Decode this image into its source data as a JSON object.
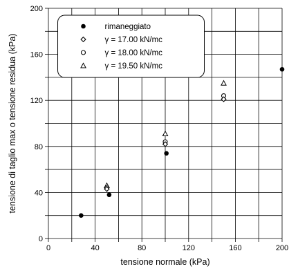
{
  "chart_data": {
    "type": "scatter",
    "xlabel": "tensione normale (kPa)",
    "ylabel": "tensione di taglio max o tensione residua (kPa)",
    "xlim": [
      0,
      200
    ],
    "ylim": [
      0,
      200
    ],
    "x_ticks": [
      "0",
      "40",
      "80",
      "120",
      "160",
      "200"
    ],
    "y_ticks": [
      "0",
      "40",
      "80",
      "120",
      "160",
      "200"
    ],
    "grid": true,
    "legend_position": "top-left",
    "series": [
      {
        "name": "rimaneggiato",
        "marker": "filled-circle",
        "points": [
          [
            28,
            20
          ],
          [
            52,
            38
          ],
          [
            101,
            74
          ],
          [
            200,
            147
          ]
        ]
      },
      {
        "name": "γ = 17.00 kN/mc",
        "marker": "open-diamond",
        "points": [
          [
            50,
            43
          ],
          [
            100,
            82
          ],
          [
            150,
            121
          ]
        ]
      },
      {
        "name": "γ = 18.00 kN/mc",
        "marker": "open-circle",
        "points": [
          [
            50,
            44
          ],
          [
            100,
            84
          ],
          [
            150,
            124
          ]
        ]
      },
      {
        "name": "γ = 19.50 kN/mc",
        "marker": "open-triangle",
        "points": [
          [
            50,
            46
          ],
          [
            100,
            91
          ],
          [
            150,
            135
          ]
        ]
      }
    ]
  }
}
